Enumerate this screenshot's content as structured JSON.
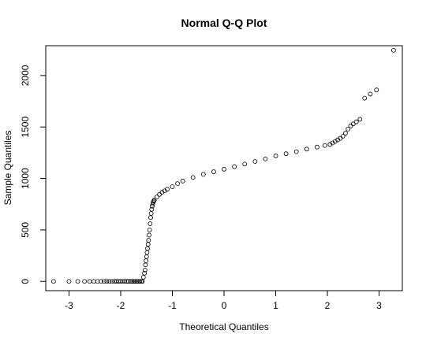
{
  "chart_data": {
    "type": "scatter",
    "title": "Normal Q-Q Plot",
    "xlabel": "Theoretical Quantiles",
    "ylabel": "Sample Quantiles",
    "xlim": [
      -3.45,
      3.45
    ],
    "ylim": [
      -90,
      2290
    ],
    "x_ticks": [
      -3,
      -2,
      -1,
      0,
      1,
      2,
      3
    ],
    "y_ticks": [
      0,
      500,
      1000,
      1500,
      2000
    ],
    "grid": false,
    "legend": "none",
    "marker": "open-circle",
    "colors": {
      "points": "#000000",
      "axes": "#000000",
      "background": "#ffffff"
    },
    "series": [
      {
        "x": [
          -3.3,
          -3.0,
          -2.83,
          -2.7,
          -2.6,
          -2.52,
          -2.45,
          -2.38,
          -2.32,
          -2.27,
          -2.22,
          -2.17,
          -2.12,
          -2.08,
          -2.04,
          -2.0,
          -1.96,
          -1.92,
          -1.88,
          -1.85,
          -1.81,
          -1.78,
          -1.75,
          -1.72,
          -1.69,
          -1.66,
          -1.63,
          -1.6,
          -1.58,
          -1.56,
          -1.54,
          -1.53,
          -1.52,
          -1.51,
          -1.5,
          -1.49,
          -1.48,
          -1.47,
          -1.46,
          -1.45,
          -1.44,
          -1.43,
          -1.42,
          -1.41,
          -1.4,
          -1.39,
          -1.38,
          -1.37,
          -1.36,
          -1.35,
          -1.3,
          -1.25,
          -1.2,
          -1.15,
          -1.1,
          -1.0,
          -0.9,
          -0.8,
          -0.6,
          -0.4,
          -0.2,
          0.0,
          0.2,
          0.4,
          0.6,
          0.8,
          1.0,
          1.2,
          1.4,
          1.6,
          1.8,
          1.95,
          2.05,
          2.1,
          2.15,
          2.2,
          2.25,
          2.3,
          2.35,
          2.4,
          2.45,
          2.5,
          2.56,
          2.63,
          2.72,
          2.83,
          2.95,
          3.28
        ],
        "y": [
          0,
          0,
          0,
          0,
          0,
          0,
          0,
          0,
          0,
          0,
          0,
          0,
          0,
          0,
          0,
          0,
          0,
          0,
          0,
          0,
          0,
          0,
          0,
          0,
          0,
          0,
          0,
          0,
          0,
          40,
          80,
          110,
          160,
          200,
          240,
          280,
          320,
          360,
          400,
          450,
          500,
          560,
          620,
          660,
          700,
          730,
          750,
          770,
          780,
          790,
          820,
          845,
          865,
          880,
          895,
          920,
          950,
          975,
          1010,
          1040,
          1065,
          1090,
          1115,
          1140,
          1165,
          1190,
          1220,
          1240,
          1260,
          1285,
          1305,
          1320,
          1330,
          1345,
          1360,
          1375,
          1390,
          1410,
          1440,
          1480,
          1510,
          1530,
          1550,
          1575,
          1780,
          1820,
          1860,
          2245
        ]
      }
    ]
  }
}
